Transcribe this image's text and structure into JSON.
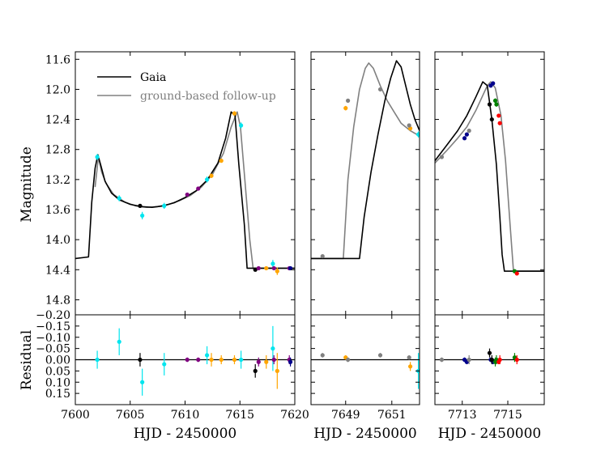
{
  "chart_data": {
    "type": "line",
    "ylabel_top": "Magnitude",
    "ylabel_bottom": "Residual",
    "legend": [
      {
        "label": "Gaia",
        "color": "#000000"
      },
      {
        "label": "ground-based follow-up",
        "color": "#808080"
      }
    ],
    "mag_range": [
      11.5,
      15.0
    ],
    "mag_ticks": [
      "11.6",
      "12.0",
      "12.4",
      "12.8",
      "13.2",
      "13.6",
      "14.0",
      "14.4",
      "14.8"
    ],
    "resid_range": [
      -0.2,
      0.2
    ],
    "resid_ticks": [
      "−0.20",
      "−0.15",
      "−0.10",
      "−0.05",
      "0.00",
      "0.05",
      "0.10",
      "0.15"
    ],
    "colors": {
      "gaia": "#000000",
      "fit": "#808080",
      "cyan": "#00e5ee",
      "purple": "#800080",
      "orange": "#ffa500",
      "gray": "#808080",
      "navy": "#00008b",
      "green": "#008000",
      "red": "#ff0000",
      "black": "#000000"
    },
    "panels": [
      {
        "xlabel": "HJD - 2450000",
        "xrange": [
          7600,
          7620
        ],
        "xticks": [
          7600,
          7605,
          7610,
          7615,
          7620
        ],
        "xtick_labels": [
          "7600",
          "7605",
          "7610",
          "7615",
          "7620"
        ],
        "model_black": [
          [
            7600,
            14.25
          ],
          [
            7601.2,
            14.23
          ],
          [
            7601.5,
            13.5
          ],
          [
            7601.8,
            13.05
          ],
          [
            7602.05,
            12.87
          ],
          [
            7602.3,
            13.0
          ],
          [
            7602.7,
            13.22
          ],
          [
            7603.3,
            13.38
          ],
          [
            7604,
            13.47
          ],
          [
            7605,
            13.53
          ],
          [
            7606,
            13.56
          ],
          [
            7607,
            13.57
          ],
          [
            7608,
            13.55
          ],
          [
            7609,
            13.51
          ],
          [
            7610,
            13.44
          ],
          [
            7611,
            13.35
          ],
          [
            7612,
            13.21
          ],
          [
            7613,
            12.98
          ],
          [
            7613.7,
            12.65
          ],
          [
            7614.2,
            12.3
          ],
          [
            7614.55,
            12.35
          ],
          [
            7614.9,
            13.0
          ],
          [
            7615.4,
            13.8
          ],
          [
            7615.65,
            14.38
          ],
          [
            7620,
            14.38
          ]
        ],
        "model_gray": [
          [
            7601.8,
            13.3
          ],
          [
            7602.1,
            12.9
          ],
          [
            7602.4,
            13.1
          ],
          [
            7602.8,
            13.25
          ],
          [
            7603.5,
            13.4
          ],
          [
            7604.5,
            13.5
          ],
          [
            7605.5,
            13.55
          ],
          [
            7606.5,
            13.57
          ],
          [
            7607.5,
            13.56
          ],
          [
            7608.5,
            13.53
          ],
          [
            7609.5,
            13.48
          ],
          [
            7610.5,
            13.41
          ],
          [
            7611.5,
            13.3
          ],
          [
            7612.5,
            13.13
          ],
          [
            7613.5,
            12.85
          ],
          [
            7614.2,
            12.5
          ],
          [
            7614.75,
            12.3
          ],
          [
            7615.05,
            12.5
          ],
          [
            7615.45,
            13.2
          ],
          [
            7615.9,
            14.0
          ],
          [
            7616.2,
            14.38
          ],
          [
            7620,
            14.38
          ]
        ],
        "points": [
          {
            "x": 7602.0,
            "y": 12.9,
            "err": 0.04,
            "res": 0.0,
            "rerr": 0.04,
            "c": "cyan"
          },
          {
            "x": 7604.0,
            "y": 13.45,
            "err": 0.04,
            "res": -0.08,
            "rerr": 0.06,
            "c": "cyan"
          },
          {
            "x": 7605.9,
            "y": 13.55,
            "err": 0.02,
            "res": 0.0,
            "rerr": 0.03,
            "c": "black"
          },
          {
            "x": 7606.1,
            "y": 13.68,
            "err": 0.05,
            "res": 0.1,
            "rerr": 0.06,
            "c": "cyan"
          },
          {
            "x": 7608.1,
            "y": 13.55,
            "err": 0.04,
            "res": 0.02,
            "rerr": 0.05,
            "c": "cyan"
          },
          {
            "x": 7610.2,
            "y": 13.4,
            "err": 0.02,
            "res": 0.0,
            "rerr": 0.01,
            "c": "purple"
          },
          {
            "x": 7611.2,
            "y": 13.32,
            "err": 0.02,
            "res": 0.0,
            "rerr": 0.01,
            "c": "purple"
          },
          {
            "x": 7612.0,
            "y": 13.2,
            "err": 0.04,
            "res": -0.02,
            "rerr": 0.04,
            "c": "cyan"
          },
          {
            "x": 7612.4,
            "y": 13.15,
            "err": 0.03,
            "res": 0.0,
            "rerr": 0.03,
            "c": "orange"
          },
          {
            "x": 7613.3,
            "y": 12.95,
            "err": 0.02,
            "res": 0.0,
            "rerr": 0.02,
            "c": "orange"
          },
          {
            "x": 7614.5,
            "y": 12.32,
            "err": 0.03,
            "res": 0.0,
            "rerr": 0.02,
            "c": "orange"
          },
          {
            "x": 7615.1,
            "y": 12.48,
            "err": 0.04,
            "res": 0.0,
            "rerr": 0.04,
            "c": "cyan"
          },
          {
            "x": 7616.4,
            "y": 14.4,
            "err": 0.02,
            "res": 0.05,
            "rerr": 0.03,
            "c": "black"
          },
          {
            "x": 7616.7,
            "y": 14.38,
            "err": 0.02,
            "res": 0.01,
            "rerr": 0.02,
            "c": "purple"
          },
          {
            "x": 7617.4,
            "y": 14.38,
            "err": 0.02,
            "res": 0.01,
            "rerr": 0.03,
            "c": "orange"
          },
          {
            "x": 7618.0,
            "y": 14.32,
            "err": 0.05,
            "res": -0.05,
            "rerr": 0.1,
            "c": "cyan"
          },
          {
            "x": 7618.4,
            "y": 14.42,
            "err": 0.05,
            "res": 0.05,
            "rerr": 0.08,
            "c": "orange"
          },
          {
            "x": 7618.1,
            "y": 14.38,
            "err": 0.02,
            "res": 0.0,
            "rerr": 0.02,
            "c": "purple"
          },
          {
            "x": 7619.5,
            "y": 14.38,
            "err": 0.02,
            "res": 0.0,
            "rerr": 0.02,
            "c": "purple"
          },
          {
            "x": 7619.6,
            "y": 14.38,
            "err": 0.02,
            "res": 0.01,
            "rerr": 0.02,
            "c": "navy"
          }
        ]
      },
      {
        "xlabel": "HJD - 2450000",
        "xrange": [
          7647.5,
          7652.2
        ],
        "xticks": [
          7649,
          7651
        ],
        "xtick_labels": [
          "7649",
          "7651"
        ],
        "model_black": [
          [
            7647.5,
            14.25
          ],
          [
            7649.6,
            14.25
          ],
          [
            7649.8,
            13.7
          ],
          [
            7650.1,
            13.1
          ],
          [
            7650.4,
            12.6
          ],
          [
            7650.7,
            12.15
          ],
          [
            7650.95,
            11.85
          ],
          [
            7651.2,
            11.62
          ],
          [
            7651.4,
            11.7
          ],
          [
            7651.6,
            11.95
          ],
          [
            7651.8,
            12.2
          ],
          [
            7652.0,
            12.4
          ],
          [
            7652.2,
            12.55
          ]
        ],
        "model_gray": [
          [
            7647.5,
            14.25
          ],
          [
            7648.9,
            14.25
          ],
          [
            7649.1,
            13.2
          ],
          [
            7649.35,
            12.5
          ],
          [
            7649.6,
            12.0
          ],
          [
            7649.85,
            11.72
          ],
          [
            7650.0,
            11.65
          ],
          [
            7650.2,
            11.72
          ],
          [
            7650.5,
            11.95
          ],
          [
            7650.8,
            12.15
          ],
          [
            7651.1,
            12.3
          ],
          [
            7651.4,
            12.45
          ],
          [
            7651.8,
            12.55
          ],
          [
            7652.2,
            12.62
          ]
        ],
        "points": [
          {
            "x": 7648.0,
            "y": 14.22,
            "err": 0.02,
            "res": -0.02,
            "rerr": 0.01,
            "c": "gray"
          },
          {
            "x": 7649.0,
            "y": 12.25,
            "err": 0.03,
            "res": -0.01,
            "rerr": 0.01,
            "c": "orange"
          },
          {
            "x": 7649.1,
            "y": 12.15,
            "err": 0.02,
            "res": 0.0,
            "rerr": 0.01,
            "c": "gray"
          },
          {
            "x": 7650.5,
            "y": 12.0,
            "err": 0.02,
            "res": -0.02,
            "rerr": 0.01,
            "c": "gray"
          },
          {
            "x": 7651.8,
            "y": 12.52,
            "err": 0.02,
            "res": 0.03,
            "rerr": 0.02,
            "c": "orange"
          },
          {
            "x": 7651.75,
            "y": 12.48,
            "err": 0.02,
            "res": -0.01,
            "rerr": 0.01,
            "c": "gray"
          },
          {
            "x": 7652.15,
            "y": 12.6,
            "err": 0.04,
            "res": 0.05,
            "rerr": 0.08,
            "c": "cyan"
          }
        ]
      },
      {
        "xlabel": "HJD - 2450000",
        "xrange": [
          7711.8,
          7716.6
        ],
        "xticks": [
          7713,
          7715
        ],
        "xtick_labels": [
          "7713",
          "7715"
        ],
        "model_black": [
          [
            7711.8,
            12.95
          ],
          [
            7712.3,
            12.75
          ],
          [
            7712.8,
            12.55
          ],
          [
            7713.2,
            12.35
          ],
          [
            7713.6,
            12.1
          ],
          [
            7713.9,
            11.9
          ],
          [
            7714.1,
            11.95
          ],
          [
            7714.3,
            12.4
          ],
          [
            7714.5,
            13.0
          ],
          [
            7714.65,
            13.7
          ],
          [
            7714.75,
            14.2
          ],
          [
            7714.85,
            14.42
          ],
          [
            7716.6,
            14.42
          ]
        ],
        "model_gray": [
          [
            7711.8,
            12.98
          ],
          [
            7712.3,
            12.82
          ],
          [
            7712.8,
            12.65
          ],
          [
            7713.2,
            12.5
          ],
          [
            7713.6,
            12.28
          ],
          [
            7713.9,
            12.08
          ],
          [
            7714.1,
            11.95
          ],
          [
            7714.25,
            11.9
          ],
          [
            7714.45,
            11.98
          ],
          [
            7714.7,
            12.35
          ],
          [
            7714.9,
            12.95
          ],
          [
            7715.1,
            13.8
          ],
          [
            7715.25,
            14.42
          ],
          [
            7716.6,
            14.42
          ]
        ],
        "points": [
          {
            "x": 7712.1,
            "y": 12.9,
            "err": 0.02,
            "res": 0.0,
            "rerr": 0.01,
            "c": "gray"
          },
          {
            "x": 7713.1,
            "y": 12.65,
            "err": 0.02,
            "res": 0.0,
            "rerr": 0.01,
            "c": "navy"
          },
          {
            "x": 7713.2,
            "y": 12.6,
            "err": 0.02,
            "res": 0.01,
            "rerr": 0.01,
            "c": "navy"
          },
          {
            "x": 7713.3,
            "y": 12.55,
            "err": 0.02,
            "res": 0.0,
            "rerr": 0.02,
            "c": "gray"
          },
          {
            "x": 7714.25,
            "y": 11.95,
            "err": 0.02,
            "res": 0.0,
            "rerr": 0.01,
            "c": "navy"
          },
          {
            "x": 7714.35,
            "y": 11.92,
            "err": 0.02,
            "res": 0.01,
            "rerr": 0.01,
            "c": "navy"
          },
          {
            "x": 7714.2,
            "y": 12.2,
            "err": 0.02,
            "res": -0.03,
            "rerr": 0.02,
            "c": "black"
          },
          {
            "x": 7714.3,
            "y": 12.4,
            "err": 0.02,
            "res": 0.0,
            "rerr": 0.02,
            "c": "black"
          },
          {
            "x": 7714.45,
            "y": 12.15,
            "err": 0.03,
            "res": 0.01,
            "rerr": 0.02,
            "c": "green"
          },
          {
            "x": 7714.5,
            "y": 12.2,
            "err": 0.03,
            "res": 0.0,
            "rerr": 0.02,
            "c": "green"
          },
          {
            "x": 7714.6,
            "y": 12.35,
            "err": 0.02,
            "res": 0.01,
            "rerr": 0.01,
            "c": "red"
          },
          {
            "x": 7714.65,
            "y": 12.45,
            "err": 0.02,
            "res": 0.0,
            "rerr": 0.02,
            "c": "red"
          },
          {
            "x": 7715.3,
            "y": 14.42,
            "err": 0.02,
            "res": -0.01,
            "rerr": 0.02,
            "c": "green"
          },
          {
            "x": 7715.4,
            "y": 14.45,
            "err": 0.02,
            "res": 0.0,
            "rerr": 0.02,
            "c": "red"
          }
        ]
      }
    ]
  }
}
